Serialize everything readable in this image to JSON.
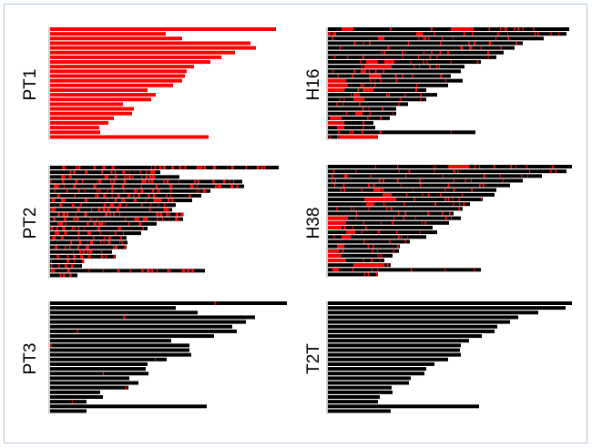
{
  "colors": {
    "chromosome": "#000000",
    "highlight": "#ff0000",
    "frame": "#b7c7db"
  },
  "chart_data": [
    {
      "type": "bar",
      "label": "PT1",
      "position": "top-left",
      "mode": "all-highlight",
      "lengths": [
        248,
        127,
        145,
        220,
        226,
        203,
        188,
        176,
        158,
        150,
        148,
        145,
        135,
        107,
        116,
        111,
        80,
        92,
        90,
        70,
        64,
        54,
        55,
        174
      ],
      "regions": []
    },
    {
      "type": "bar",
      "label": "PT2",
      "position": "middle-left",
      "mode": "dense",
      "lengths": [
        251,
        121,
        142,
        211,
        213,
        176,
        166,
        156,
        138,
        134,
        146,
        146,
        117,
        107,
        100,
        84,
        85,
        84,
        68,
        72,
        37,
        35,
        170,
        30
      ],
      "regions": []
    },
    {
      "type": "bar",
      "label": "PT3",
      "position": "bottom-left",
      "mode": "sparse",
      "lengths": [
        260,
        138,
        162,
        225,
        215,
        200,
        205,
        180,
        133,
        153,
        153,
        155,
        128,
        107,
        105,
        108,
        87,
        97,
        86,
        55,
        58,
        40,
        172,
        40
      ],
      "regions": []
    },
    {
      "type": "bar",
      "label": "H16",
      "position": "top-right",
      "mode": "regions",
      "lengths": [
        265,
        262,
        237,
        214,
        205,
        193,
        185,
        168,
        150,
        146,
        135,
        148,
        132,
        108,
        120,
        108,
        88,
        75,
        75,
        68,
        50,
        52,
        162,
        55
      ],
      "regions": [
        [
          0,
          15,
          28
        ],
        [
          0,
          135,
          160
        ],
        [
          1,
          97,
          104
        ],
        [
          1,
          5,
          9
        ],
        [
          2,
          55,
          62
        ],
        [
          7,
          42,
          55
        ],
        [
          7,
          62,
          73
        ],
        [
          8,
          40,
          70
        ],
        [
          9,
          36,
          42
        ],
        [
          10,
          45,
          58
        ],
        [
          11,
          0,
          20
        ],
        [
          12,
          0,
          22
        ],
        [
          13,
          0,
          18
        ],
        [
          13,
          38,
          50
        ],
        [
          14,
          28,
          35
        ],
        [
          15,
          28,
          38
        ],
        [
          18,
          30,
          38
        ],
        [
          19,
          2,
          15
        ],
        [
          20,
          0,
          18
        ],
        [
          21,
          10,
          18
        ],
        [
          23,
          12,
          55
        ]
      ]
    },
    {
      "type": "bar",
      "label": "H38",
      "position": "middle-right",
      "mode": "regions",
      "lengths": [
        268,
        262,
        235,
        214,
        200,
        185,
        183,
        170,
        156,
        148,
        138,
        146,
        133,
        115,
        120,
        108,
        90,
        79,
        78,
        71,
        62,
        69,
        168,
        55
      ],
      "regions": [
        [
          0,
          133,
          155
        ],
        [
          5,
          50,
          58
        ],
        [
          6,
          60,
          70
        ],
        [
          7,
          40,
          75
        ],
        [
          8,
          42,
          50
        ],
        [
          11,
          0,
          22
        ],
        [
          12,
          0,
          20
        ],
        [
          13,
          0,
          15
        ],
        [
          14,
          20,
          30
        ],
        [
          15,
          15,
          25
        ],
        [
          17,
          10,
          18
        ],
        [
          18,
          0,
          12
        ],
        [
          19,
          0,
          15
        ],
        [
          20,
          0,
          20
        ],
        [
          21,
          28,
          62
        ],
        [
          22,
          5,
          12
        ]
      ]
    },
    {
      "type": "bar",
      "label": "T2T",
      "position": "bottom-right",
      "mode": "none",
      "lengths": [
        268,
        261,
        231,
        209,
        200,
        186,
        183,
        169,
        155,
        146,
        145,
        146,
        132,
        117,
        108,
        106,
        91,
        89,
        70,
        71,
        57,
        55,
        166,
        69
      ],
      "regions": []
    }
  ]
}
